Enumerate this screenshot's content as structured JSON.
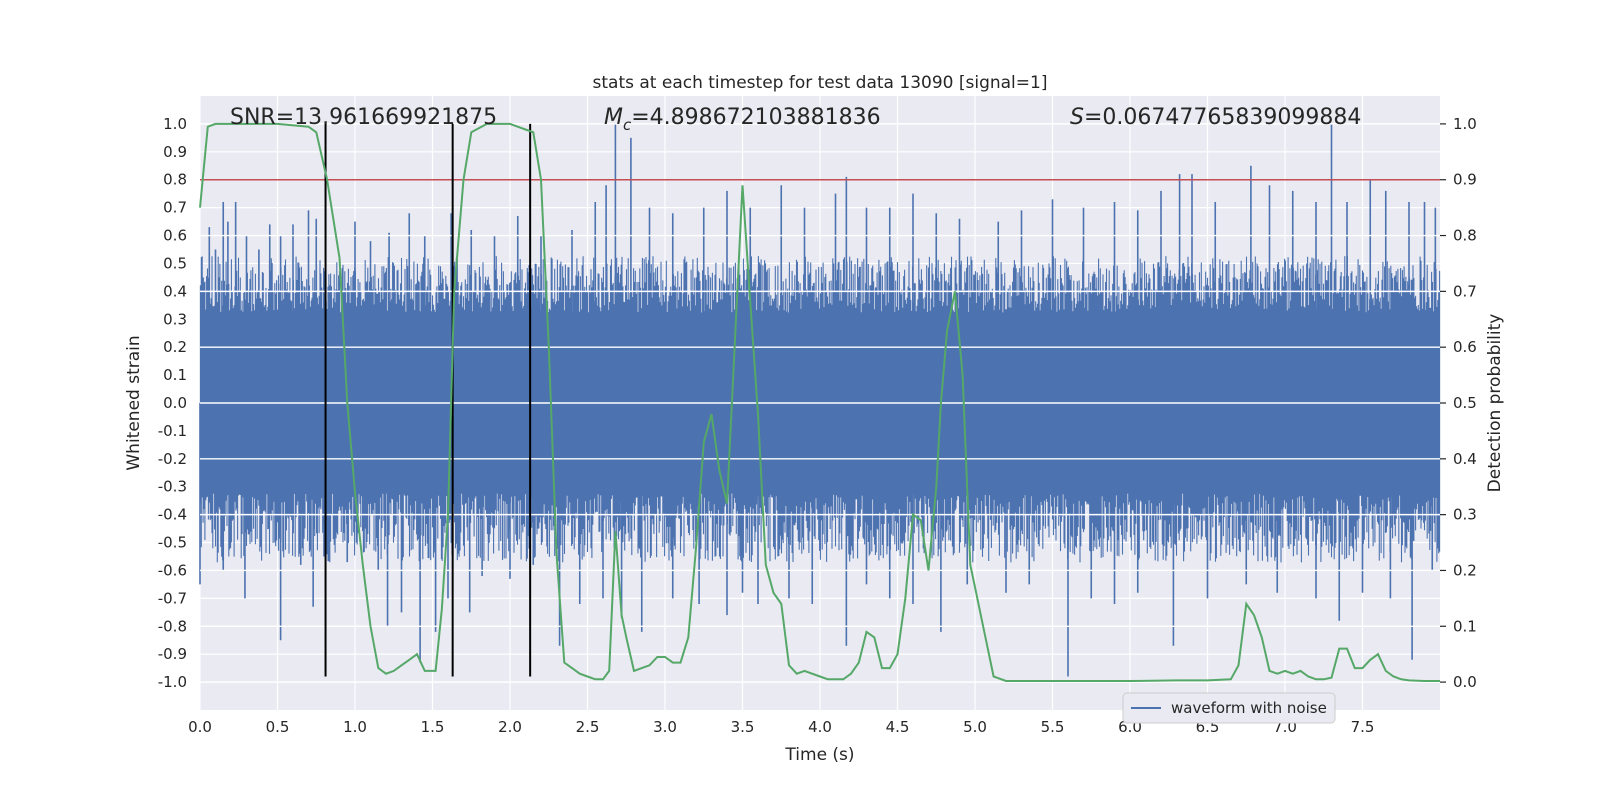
{
  "chart_data": {
    "type": "line",
    "title": "stats at each timestep for test data 13090 [signal=1]",
    "xlabel": "Time (s)",
    "ylabel": "Whitened strain",
    "y2label": "Detection probability",
    "xlim": [
      0,
      8
    ],
    "ylim": [
      -1.1,
      1.1
    ],
    "y2lim": [
      -0.05,
      1.05
    ],
    "xticks": [
      "0.0",
      "0.5",
      "1.0",
      "1.5",
      "2.0",
      "2.5",
      "3.0",
      "3.5",
      "4.0",
      "4.5",
      "5.0",
      "5.5",
      "6.0",
      "6.5",
      "7.0",
      "7.5"
    ],
    "xtick_values": [
      0,
      0.5,
      1,
      1.5,
      2,
      2.5,
      3,
      3.5,
      4,
      4.5,
      5,
      5.5,
      6,
      6.5,
      7,
      7.5
    ],
    "yticks": [
      "1.0",
      "0.9",
      "0.8",
      "0.7",
      "0.6",
      "0.5",
      "0.4",
      "0.3",
      "0.2",
      "0.1",
      "0.0",
      "-0.1",
      "-0.2",
      "-0.3",
      "-0.4",
      "-0.5",
      "-0.6",
      "-0.7",
      "-0.8",
      "-0.9",
      "-1.0"
    ],
    "ytick_values": [
      1,
      0.9,
      0.8,
      0.7,
      0.6,
      0.5,
      0.4,
      0.3,
      0.2,
      0.1,
      0,
      -0.1,
      -0.2,
      -0.3,
      -0.4,
      -0.5,
      -0.6,
      -0.7,
      -0.8,
      -0.9,
      -1
    ],
    "y2ticks": [
      "1.0",
      "0.9",
      "0.8",
      "0.7",
      "0.6",
      "0.5",
      "0.4",
      "0.3",
      "0.2",
      "0.1",
      "0.0"
    ],
    "y2tick_values": [
      1,
      0.9,
      0.8,
      0.7,
      0.6,
      0.5,
      0.4,
      0.3,
      0.2,
      0.1,
      0
    ],
    "threshold": 0.9,
    "vlines": [
      0.81,
      1.63,
      2.13
    ],
    "vline_range": [
      -0.98,
      1.0
    ],
    "annotations": {
      "snr": "SNR=13.961669921875",
      "mc": "=4.898672103881836",
      "s": "=0.06747765839099884",
      "mc_symbol": "M",
      "mc_sub": "c",
      "s_symbol": "S"
    },
    "legend": {
      "label": "waveform with noise",
      "location": "lower-right"
    },
    "waveform": {
      "name": "waveform with noise",
      "envelope_upper": 0.45,
      "envelope_lower": -0.45,
      "spikes": [
        [
          0.02,
          0.45
        ],
        [
          0.06,
          0.63
        ],
        [
          0.1,
          0.55
        ],
        [
          0.15,
          0.72
        ],
        [
          0.18,
          0.65
        ],
        [
          0.23,
          0.72
        ],
        [
          0.3,
          0.6
        ],
        [
          0.38,
          0.55
        ],
        [
          0.45,
          0.64
        ],
        [
          0.52,
          0.6
        ],
        [
          0.6,
          0.64
        ],
        [
          0.7,
          0.69
        ],
        [
          0.75,
          0.66
        ],
        [
          1.0,
          0.65
        ],
        [
          1.1,
          0.58
        ],
        [
          1.22,
          0.61
        ],
        [
          1.35,
          0.68
        ],
        [
          1.45,
          0.6
        ],
        [
          1.62,
          0.68
        ],
        [
          1.75,
          0.62
        ],
        [
          1.9,
          0.6
        ],
        [
          2.05,
          0.67
        ],
        [
          2.2,
          0.6
        ],
        [
          2.4,
          0.62
        ],
        [
          2.55,
          0.72
        ],
        [
          2.62,
          0.78
        ],
        [
          2.68,
          1.0
        ],
        [
          2.78,
          0.95
        ],
        [
          2.9,
          0.7
        ],
        [
          3.05,
          0.68
        ],
        [
          3.25,
          0.7
        ],
        [
          3.4,
          0.76
        ],
        [
          3.55,
          0.7
        ],
        [
          3.75,
          0.78
        ],
        [
          3.9,
          0.7
        ],
        [
          4.1,
          0.75
        ],
        [
          4.17,
          0.81
        ],
        [
          4.3,
          0.7
        ],
        [
          4.45,
          0.7
        ],
        [
          4.6,
          0.75
        ],
        [
          4.75,
          0.68
        ],
        [
          4.9,
          0.66
        ],
        [
          5.15,
          0.65
        ],
        [
          5.3,
          0.69
        ],
        [
          5.5,
          0.73
        ],
        [
          5.7,
          0.7
        ],
        [
          5.9,
          0.72
        ],
        [
          6.05,
          0.69
        ],
        [
          6.2,
          0.76
        ],
        [
          6.32,
          0.82
        ],
        [
          6.4,
          0.82
        ],
        [
          6.55,
          0.72
        ],
        [
          6.78,
          0.85
        ],
        [
          6.9,
          0.78
        ],
        [
          7.05,
          0.76
        ],
        [
          7.2,
          0.72
        ],
        [
          7.3,
          1.0
        ],
        [
          7.4,
          0.72
        ],
        [
          7.55,
          0.8
        ],
        [
          7.65,
          0.76
        ],
        [
          7.8,
          0.72
        ],
        [
          7.9,
          0.72
        ],
        [
          7.97,
          0.7
        ]
      ],
      "dips": [
        [
          0.0,
          -0.65
        ],
        [
          0.15,
          -0.6
        ],
        [
          0.29,
          -0.7
        ],
        [
          0.52,
          -0.85
        ],
        [
          0.65,
          -0.58
        ],
        [
          0.73,
          -0.73
        ],
        [
          0.8,
          -0.55
        ],
        [
          0.95,
          -0.57
        ],
        [
          1.15,
          -0.6
        ],
        [
          1.21,
          -0.8
        ],
        [
          1.3,
          -0.75
        ],
        [
          1.42,
          -0.93
        ],
        [
          1.52,
          -0.82
        ],
        [
          1.6,
          -0.7
        ],
        [
          1.74,
          -0.75
        ],
        [
          1.82,
          -0.62
        ],
        [
          2.0,
          -0.63
        ],
        [
          2.15,
          -0.58
        ],
        [
          2.32,
          -0.87
        ],
        [
          2.45,
          -0.72
        ],
        [
          2.6,
          -0.7
        ],
        [
          2.72,
          -0.77
        ],
        [
          2.85,
          -0.82
        ],
        [
          3.05,
          -0.7
        ],
        [
          3.22,
          -0.72
        ],
        [
          3.4,
          -0.76
        ],
        [
          3.5,
          -0.68
        ],
        [
          3.6,
          -0.72
        ],
        [
          3.8,
          -0.7
        ],
        [
          3.95,
          -0.72
        ],
        [
          4.17,
          -0.87
        ],
        [
          4.3,
          -0.65
        ],
        [
          4.45,
          -0.7
        ],
        [
          4.6,
          -0.72
        ],
        [
          4.78,
          -0.82
        ],
        [
          4.95,
          -0.65
        ],
        [
          5.2,
          -0.68
        ],
        [
          5.35,
          -0.65
        ],
        [
          5.6,
          -0.98
        ],
        [
          5.75,
          -0.7
        ],
        [
          5.9,
          -0.72
        ],
        [
          6.05,
          -0.68
        ],
        [
          6.28,
          -0.87
        ],
        [
          6.5,
          -0.7
        ],
        [
          6.75,
          -0.65
        ],
        [
          6.95,
          -0.68
        ],
        [
          7.2,
          -0.7
        ],
        [
          7.35,
          -0.78
        ],
        [
          7.5,
          -0.68
        ],
        [
          7.68,
          -0.7
        ],
        [
          7.82,
          -0.92
        ],
        [
          7.95,
          -0.6
        ]
      ]
    },
    "probability": {
      "name": "detection probability",
      "x": [
        0.0,
        0.05,
        0.1,
        0.2,
        0.5,
        0.7,
        0.75,
        0.82,
        0.9,
        0.95,
        1.0,
        1.05,
        1.1,
        1.15,
        1.2,
        1.25,
        1.3,
        1.35,
        1.4,
        1.45,
        1.52,
        1.56,
        1.6,
        1.64,
        1.7,
        1.75,
        1.85,
        2.0,
        2.1,
        2.15,
        2.2,
        2.25,
        2.3,
        2.35,
        2.4,
        2.45,
        2.5,
        2.55,
        2.6,
        2.64,
        2.68,
        2.72,
        2.75,
        2.8,
        2.85,
        2.9,
        2.95,
        3.0,
        3.05,
        3.1,
        3.15,
        3.2,
        3.25,
        3.3,
        3.35,
        3.4,
        3.5,
        3.55,
        3.6,
        3.65,
        3.7,
        3.75,
        3.8,
        3.85,
        3.9,
        4.0,
        4.05,
        4.1,
        4.15,
        4.2,
        4.25,
        4.3,
        4.35,
        4.4,
        4.45,
        4.5,
        4.55,
        4.6,
        4.65,
        4.7,
        4.75,
        4.78,
        4.82,
        4.87,
        4.92,
        4.97,
        5.0,
        5.06,
        5.12,
        5.2,
        5.3,
        5.6,
        6.0,
        6.3,
        6.5,
        6.65,
        6.7,
        6.75,
        6.8,
        6.85,
        6.9,
        6.95,
        7.0,
        7.05,
        7.1,
        7.15,
        7.2,
        7.25,
        7.3,
        7.35,
        7.4,
        7.45,
        7.5,
        7.55,
        7.6,
        7.65,
        7.7,
        7.75,
        7.8,
        7.9,
        8.0
      ],
      "y": [
        0.85,
        0.995,
        1.0,
        1.0,
        1.0,
        0.995,
        0.985,
        0.9,
        0.76,
        0.5,
        0.34,
        0.21,
        0.1,
        0.025,
        0.015,
        0.02,
        0.03,
        0.04,
        0.05,
        0.02,
        0.02,
        0.13,
        0.3,
        0.7,
        0.9,
        0.985,
        1.0,
        1.0,
        0.99,
        0.985,
        0.9,
        0.6,
        0.23,
        0.035,
        0.025,
        0.015,
        0.01,
        0.005,
        0.005,
        0.02,
        0.27,
        0.12,
        0.08,
        0.02,
        0.025,
        0.03,
        0.045,
        0.045,
        0.035,
        0.035,
        0.08,
        0.24,
        0.43,
        0.48,
        0.38,
        0.32,
        0.89,
        0.68,
        0.48,
        0.21,
        0.16,
        0.14,
        0.03,
        0.015,
        0.02,
        0.01,
        0.005,
        0.005,
        0.005,
        0.015,
        0.035,
        0.09,
        0.08,
        0.025,
        0.025,
        0.05,
        0.15,
        0.3,
        0.29,
        0.2,
        0.35,
        0.5,
        0.63,
        0.7,
        0.55,
        0.21,
        0.17,
        0.09,
        0.01,
        0.002,
        0.002,
        0.002,
        0.002,
        0.003,
        0.003,
        0.005,
        0.03,
        0.14,
        0.12,
        0.08,
        0.02,
        0.015,
        0.02,
        0.015,
        0.02,
        0.01,
        0.005,
        0.005,
        0.008,
        0.06,
        0.06,
        0.025,
        0.025,
        0.04,
        0.05,
        0.02,
        0.01,
        0.005,
        0.003,
        0.002,
        0.002
      ]
    },
    "colors": {
      "background": "#eaeaf2",
      "grid": "#ffffff",
      "waveform": "#4c72b0",
      "probability": "#55a868",
      "threshold": "#c44e52",
      "vline": "#000000",
      "text": "#262626"
    }
  }
}
